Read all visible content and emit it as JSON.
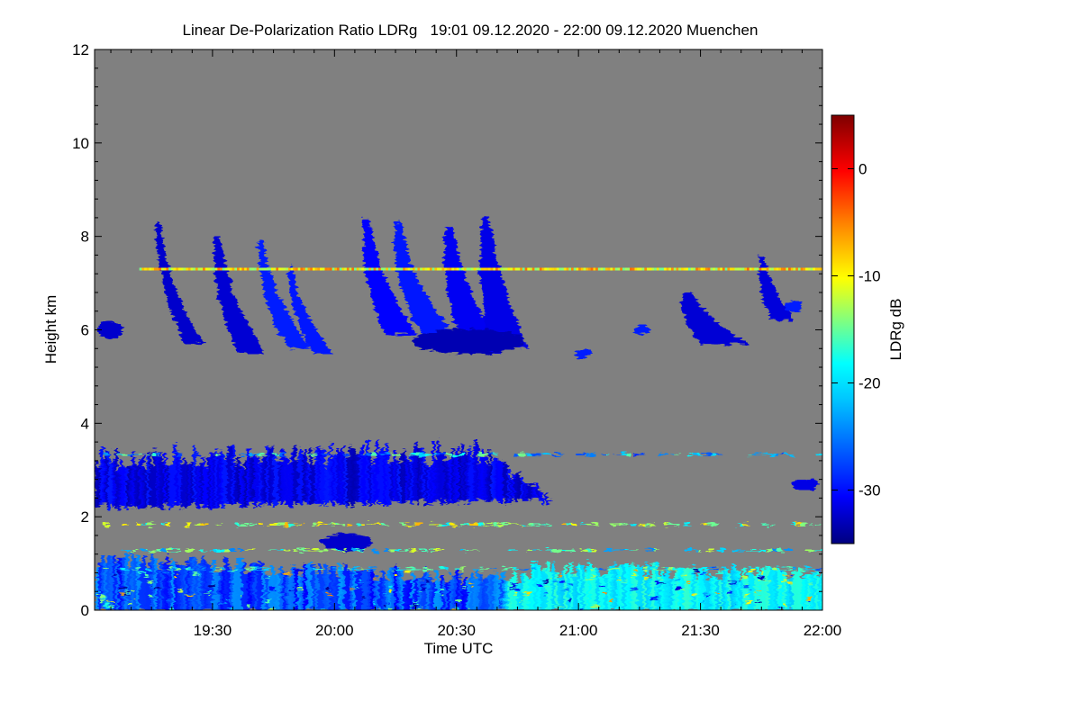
{
  "chart_data": {
    "type": "heatmap",
    "title": "Linear De-Polarization Ratio LDRg   19:01 09.12.2020 - 22:00 09.12.2020 Muenchen",
    "xlabel": "Time UTC",
    "ylabel": "Height km",
    "xlim_hours": [
      19.0167,
      22.0
    ],
    "ylim": [
      0,
      12
    ],
    "x_ticks": [
      {
        "value": 19.5,
        "label": "19:30"
      },
      {
        "value": 20.0,
        "label": "20:00"
      },
      {
        "value": 20.5,
        "label": "20:30"
      },
      {
        "value": 21.0,
        "label": "21:00"
      },
      {
        "value": 21.5,
        "label": "21:30"
      },
      {
        "value": 22.0,
        "label": "22:00"
      }
    ],
    "y_ticks": [
      {
        "value": 0,
        "label": "0"
      },
      {
        "value": 2,
        "label": "2"
      },
      {
        "value": 4,
        "label": "4"
      },
      {
        "value": 6,
        "label": "6"
      },
      {
        "value": 8,
        "label": "8"
      },
      {
        "value": 10,
        "label": "10"
      },
      {
        "value": 12,
        "label": "12"
      }
    ],
    "colorbar": {
      "label": "LDRg dB",
      "range": [
        -35,
        5
      ],
      "ticks": [
        {
          "value": 0,
          "label": "0"
        },
        {
          "value": -10,
          "label": "-10"
        },
        {
          "value": -20,
          "label": "-20"
        },
        {
          "value": -30,
          "label": "-30"
        }
      ],
      "colormap": [
        "#00007f",
        "#0000ff",
        "#0080ff",
        "#00ffff",
        "#80ff80",
        "#ffff00",
        "#ff8000",
        "#ff0000",
        "#7f0000"
      ]
    },
    "background_color": "#808080",
    "features": [
      {
        "name": "upper cirrus fall streaks",
        "t_start": 19.02,
        "t_end": 21.95,
        "z_bottom": 5.2,
        "z_top": 8.5,
        "ldr_db": -32
      },
      {
        "name": "elevated artifact line",
        "t_start": 19.2,
        "t_end": 22.0,
        "z": 7.3,
        "ldr_db": -12
      },
      {
        "name": "mid-level cloud layer",
        "t_start": 19.02,
        "t_end": 20.9,
        "z_bottom": 2.2,
        "z_top": 3.5,
        "ldr_db": -33
      },
      {
        "name": "boundary layer aerosol",
        "t_start": 19.02,
        "t_end": 22.0,
        "z_bottom": 0.0,
        "z_top": 1.3,
        "ldr_db": -22
      }
    ]
  }
}
